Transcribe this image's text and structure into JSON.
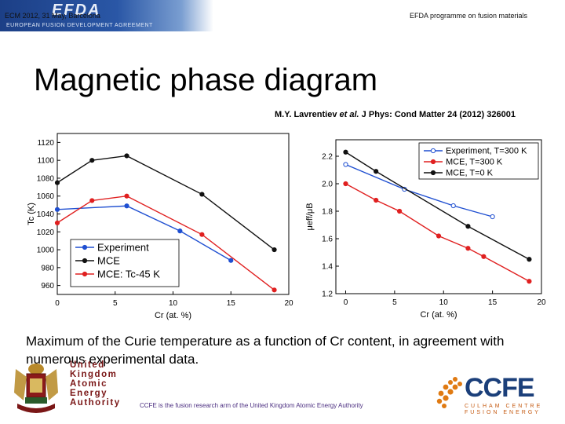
{
  "header": {
    "logo_text": "EFDA",
    "banner_subtitle": "EUROPEAN FUSION DEVELOPMENT AGREEMENT",
    "left_text": "ECM 2012, 31 May, Barcelona",
    "right_text": "EFDA programme on fusion materials"
  },
  "slide": {
    "title": "Magnetic phase diagram",
    "citation_authors": "M.Y. Lavrentiev ",
    "citation_etal": "et al.",
    "citation_rest": " J Phys: Cond Matter  24 (2012) 326001",
    "caption": "Maximum of the Curie temperature as a function of Cr content, in agreement with numerous experimental data."
  },
  "footer": {
    "ukaea_lines": [
      "United",
      "Kingdom",
      "Atomic",
      "Energy",
      "Authority"
    ],
    "text": "CCFE is the fusion research arm of the United Kingdom Atomic Energy Authority",
    "ccfe_logo": "CCFE",
    "ccfe_sub_lines": [
      "CULHAM CENTRE",
      "FUSION ENERGY"
    ]
  },
  "colors": {
    "experiment": "#1f4fd1",
    "mce": "#111111",
    "mce_tc": "#e02020"
  },
  "chart_data": [
    {
      "type": "line",
      "xlabel": "Cr (at. %)",
      "ylabel": "Tc (K)",
      "xlim": [
        0,
        20
      ],
      "ylim": [
        950,
        1130
      ],
      "xticks": [
        "0",
        "5",
        "10",
        "15",
        "20"
      ],
      "yticks": [
        "960",
        "980",
        "1000",
        "1020",
        "1040",
        "1060",
        "1080",
        "1100",
        "1120"
      ],
      "legend_position": "bottom-left",
      "series": [
        {
          "name": "Experiment",
          "color": "#1f4fd1",
          "marker": "filled-circle",
          "x": [
            0,
            6,
            10.6,
            15
          ],
          "y": [
            1045,
            1049,
            1021,
            988
          ]
        },
        {
          "name": "MCE",
          "color": "#111111",
          "marker": "filled-circle",
          "x": [
            0,
            3,
            6,
            12.5,
            18.75
          ],
          "y": [
            1075,
            1100,
            1105,
            1062,
            1000
          ]
        },
        {
          "name": "MCE: Tc-45 K",
          "color": "#e02020",
          "marker": "filled-circle",
          "x": [
            0,
            3,
            6,
            12.5,
            18.75
          ],
          "y": [
            1030,
            1055,
            1060,
            1017,
            955
          ]
        }
      ]
    },
    {
      "type": "line",
      "xlabel": "Cr (at. %)",
      "ylabel": "μeff/μB",
      "xlim": [
        -1,
        20
      ],
      "ylim": [
        1.2,
        2.32
      ],
      "xticks": [
        "0",
        "5",
        "10",
        "15",
        "20"
      ],
      "yticks": [
        "1.2",
        "1.4",
        "1.6",
        "1.8",
        "2.0",
        "2.2"
      ],
      "legend_position": "top-right",
      "series": [
        {
          "name": "Experiment, T=300 K",
          "color": "#1f4fd1",
          "marker": "open-circle",
          "x": [
            0,
            6,
            11,
            15
          ],
          "y": [
            2.14,
            1.96,
            1.84,
            1.76
          ]
        },
        {
          "name": "MCE, T=300 K",
          "color": "#e02020",
          "marker": "filled-circle",
          "x": [
            0,
            3.1,
            5.5,
            9.5,
            12.5,
            14.1,
            18.75
          ],
          "y": [
            2.0,
            1.88,
            1.8,
            1.62,
            1.53,
            1.47,
            1.29
          ]
        },
        {
          "name": "MCE, T=0 K",
          "color": "#111111",
          "marker": "filled-circle",
          "x": [
            0,
            3.1,
            12.5,
            18.75
          ],
          "y": [
            2.23,
            2.09,
            1.69,
            1.45
          ]
        }
      ]
    }
  ]
}
